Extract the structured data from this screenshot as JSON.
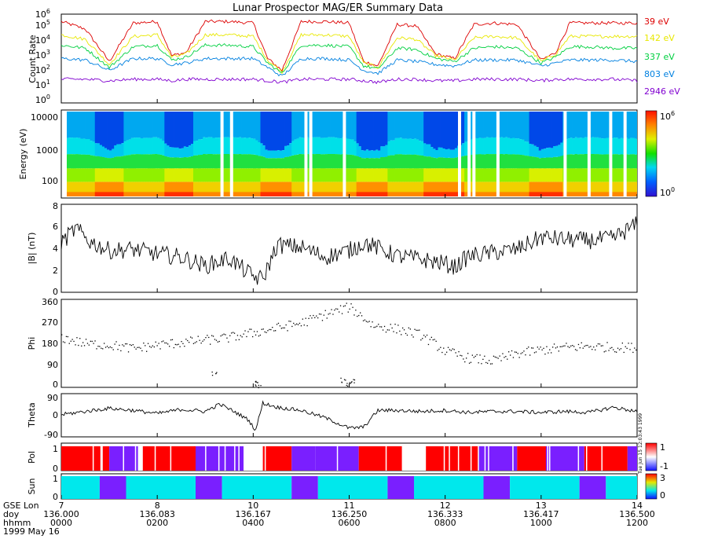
{
  "title": "Lunar Prospector MAG/ER Summary Data",
  "date_label": "1999 May 16",
  "side_stamp": "Tue Jun 15 12:03:43 1999",
  "colors": {
    "39": "#dd0000",
    "142": "#e8e800",
    "337": "#00d040",
    "803": "#0080e0",
    "2946": "#8000d0",
    "pol_red": "#ff0000",
    "pol_violet": "#7a1fff",
    "sun_cyan": "#00e8ec",
    "sun_violet": "#7a1fff"
  },
  "time_axis": {
    "rows": [
      {
        "label": "GSE Lon",
        "values": [
          "7",
          "8",
          "10",
          "11",
          "12",
          "13",
          "14"
        ]
      },
      {
        "label": "doy",
        "values": [
          "136.000",
          "136.083",
          "136.167",
          "136.250",
          "136.333",
          "136.417",
          "136.500"
        ]
      },
      {
        "label": "hhmm",
        "values": [
          "0000",
          "0200",
          "0400",
          "0600",
          "0800",
          "1000",
          "1200"
        ]
      }
    ],
    "hour_range": [
      0,
      12
    ]
  },
  "chart_data": [
    {
      "type": "line",
      "id": "count_rate",
      "ylabel": "Count Rate",
      "yscale": "log",
      "ylim_exp": [
        0,
        6
      ],
      "tick_labels": [
        {
          "base": "10",
          "exp": "0"
        },
        {
          "base": "10",
          "exp": "1"
        },
        {
          "base": "10",
          "exp": "2"
        },
        {
          "base": "10",
          "exp": "3"
        },
        {
          "base": "10",
          "exp": "4"
        },
        {
          "base": "10",
          "exp": "5"
        },
        {
          "base": "10",
          "exp": "6"
        }
      ],
      "x_hours": [
        0.0,
        0.5,
        1.0,
        1.5,
        2.0,
        2.3,
        2.6,
        3.0,
        3.5,
        4.0,
        4.3,
        4.6,
        5.0,
        5.5,
        6.0,
        6.3,
        6.6,
        7.0,
        7.4,
        7.8,
        8.2,
        8.6,
        9.0,
        9.5,
        10.0,
        10.3,
        10.6,
        11.0,
        11.5,
        12.0
      ],
      "series": [
        {
          "name": "39 eV",
          "color": "#dd0000",
          "log10_values": [
            5.5,
            5.0,
            2.8,
            5.4,
            5.5,
            3.2,
            3.4,
            5.5,
            5.5,
            5.4,
            3.0,
            2.2,
            5.5,
            5.5,
            5.4,
            2.8,
            2.5,
            5.3,
            5.2,
            3.3,
            3.0,
            5.3,
            5.4,
            5.3,
            2.9,
            3.4,
            5.4,
            5.4,
            5.4,
            5.4
          ]
        },
        {
          "name": "142 eV",
          "color": "#e8e800",
          "log10_values": [
            4.6,
            4.3,
            2.6,
            4.5,
            4.6,
            3.1,
            3.3,
            4.6,
            4.6,
            4.5,
            2.9,
            2.1,
            4.6,
            4.6,
            4.5,
            2.7,
            2.4,
            4.4,
            4.3,
            3.2,
            2.9,
            4.4,
            4.5,
            4.4,
            2.8,
            3.3,
            4.5,
            4.5,
            4.5,
            4.5
          ]
        },
        {
          "name": "337 eV",
          "color": "#00d040",
          "log10_values": [
            3.9,
            3.7,
            2.4,
            3.8,
            3.9,
            2.9,
            3.1,
            3.9,
            3.9,
            3.8,
            2.7,
            2.0,
            3.9,
            3.9,
            3.8,
            2.5,
            2.3,
            3.7,
            3.6,
            3.0,
            2.8,
            3.7,
            3.8,
            3.7,
            2.7,
            3.1,
            3.8,
            3.8,
            3.7,
            3.7
          ]
        },
        {
          "name": "803 eV",
          "color": "#0080e0",
          "log10_values": [
            3.0,
            2.9,
            2.2,
            3.0,
            3.0,
            2.6,
            2.7,
            3.0,
            3.0,
            3.0,
            2.4,
            1.8,
            3.0,
            3.0,
            2.9,
            2.2,
            2.0,
            2.9,
            2.8,
            2.6,
            2.5,
            2.9,
            2.9,
            2.9,
            2.5,
            2.7,
            2.9,
            2.9,
            2.9,
            2.8
          ]
        },
        {
          "name": "2946 eV",
          "color": "#8000d0",
          "log10_values": [
            1.6,
            1.6,
            1.5,
            1.6,
            1.6,
            1.5,
            1.6,
            1.6,
            1.6,
            1.6,
            1.5,
            1.4,
            1.6,
            1.6,
            1.6,
            1.5,
            1.4,
            1.6,
            1.6,
            1.5,
            1.5,
            1.6,
            1.6,
            1.6,
            1.5,
            1.6,
            1.6,
            1.6,
            1.6,
            1.5
          ]
        }
      ]
    },
    {
      "type": "heatmap",
      "id": "energy_spectrogram",
      "ylabel": "Energy (eV)",
      "yscale": "log",
      "ylim": [
        40,
        16000
      ],
      "tick_labels": [
        "100",
        "1000",
        "10000"
      ],
      "tick_values": [
        100,
        1000,
        10000
      ],
      "colorbar": {
        "min_label": {
          "base": "10",
          "exp": "0"
        },
        "max_label": {
          "base": "10",
          "exp": "6"
        }
      },
      "x_hours": [
        0.0,
        0.5,
        1.0,
        1.5,
        2.0,
        2.3,
        2.6,
        3.0,
        3.5,
        4.0,
        4.3,
        4.6,
        5.0,
        5.5,
        6.0,
        6.3,
        6.6,
        7.0,
        7.4,
        7.8,
        8.2,
        8.6,
        9.0,
        9.5,
        10.0,
        10.3,
        10.6,
        11.0,
        11.5,
        12.0
      ],
      "wake_fraction": [
        0.0,
        0.1,
        1.0,
        0.1,
        0.0,
        0.9,
        0.8,
        0.0,
        0.0,
        0.1,
        1.0,
        1.0,
        0.0,
        0.0,
        0.1,
        1.0,
        1.0,
        0.1,
        0.2,
        0.9,
        0.9,
        0.1,
        0.0,
        0.1,
        1.0,
        0.8,
        0.1,
        0.0,
        0.1,
        0.1
      ],
      "data_gaps_hours": [
        3.35,
        3.55,
        5.1,
        5.2,
        5.9,
        8.3,
        8.5,
        8.6,
        9.1,
        10.5,
        11.0,
        11.45,
        11.75
      ]
    },
    {
      "type": "line",
      "id": "field_magnitude",
      "ylabel": "|B| (nT)",
      "ylim": [
        0,
        8
      ],
      "tick_labels": [
        "0",
        "2",
        "4",
        "6",
        "8"
      ],
      "tick_values": [
        0,
        2,
        4,
        6,
        8
      ],
      "x_hours": [
        0.0,
        0.3,
        0.6,
        1.0,
        1.5,
        2.0,
        2.5,
        3.0,
        3.5,
        4.0,
        4.2,
        4.5,
        5.0,
        5.5,
        6.0,
        6.3,
        6.5,
        7.0,
        7.5,
        8.0,
        8.2,
        8.5,
        9.0,
        9.5,
        10.0,
        10.5,
        11.0,
        11.5,
        12.0
      ],
      "values": [
        4.5,
        5.8,
        4.6,
        3.8,
        3.9,
        3.5,
        3.2,
        2.4,
        3.1,
        1.4,
        1.2,
        4.3,
        4.1,
        3.2,
        3.8,
        4.5,
        4.2,
        3.3,
        3.0,
        2.6,
        2.3,
        3.3,
        3.6,
        3.9,
        5.0,
        4.8,
        4.7,
        4.9,
        6.2
      ]
    },
    {
      "type": "scatter",
      "id": "phi",
      "ylabel": "Phi",
      "ylim": [
        0,
        360
      ],
      "tick_labels": [
        "0",
        "90",
        "180",
        "270",
        "360"
      ],
      "tick_values": [
        0,
        90,
        180,
        270,
        360
      ],
      "x_hours": [
        0.0,
        0.5,
        1.0,
        1.5,
        2.0,
        2.5,
        3.0,
        3.5,
        4.0,
        4.5,
        5.0,
        5.5,
        6.0,
        6.5,
        7.0,
        7.5,
        8.0,
        8.5,
        9.0,
        9.5,
        10.0,
        10.5,
        11.0,
        11.5,
        12.0
      ],
      "values": [
        205,
        180,
        175,
        160,
        175,
        185,
        195,
        205,
        225,
        245,
        265,
        300,
        330,
        255,
        240,
        215,
        150,
        120,
        110,
        140,
        155,
        165,
        170,
        165,
        165
      ],
      "outlier_x": [
        3.2,
        4.05,
        4.1,
        5.85,
        5.95,
        6.05
      ],
      "outlier_values": [
        60,
        30,
        10,
        30,
        15,
        25
      ]
    },
    {
      "type": "line",
      "id": "theta",
      "ylabel": "Theta",
      "ylim": [
        -90,
        90
      ],
      "tick_labels": [
        "-90",
        "0",
        "90"
      ],
      "tick_values": [
        -90,
        0,
        90
      ],
      "x_hours": [
        0.0,
        0.5,
        1.0,
        1.5,
        2.0,
        2.5,
        3.0,
        3.3,
        3.6,
        3.9,
        4.05,
        4.2,
        4.5,
        5.0,
        5.5,
        6.0,
        6.3,
        6.6,
        7.0,
        7.5,
        8.0,
        8.5,
        9.0,
        9.5,
        10.0,
        10.5,
        11.0,
        11.5,
        12.0
      ],
      "values": [
        5,
        20,
        35,
        25,
        10,
        30,
        20,
        55,
        20,
        -20,
        -70,
        60,
        40,
        25,
        -10,
        -60,
        -55,
        25,
        25,
        20,
        25,
        15,
        20,
        20,
        15,
        20,
        15,
        40,
        20
      ]
    },
    {
      "type": "table",
      "id": "polarity",
      "ylabel": "Pol",
      "tick_labels": [
        "0",
        "1"
      ],
      "colorbar_labels": [
        "-1",
        "1"
      ],
      "segments": [
        {
          "start_hour": 0.0,
          "end_hour": 1.0,
          "value": 1
        },
        {
          "start_hour": 1.0,
          "end_hour": 1.6,
          "value": -1
        },
        {
          "start_hour": 1.6,
          "end_hour": 1.7,
          "value": 0
        },
        {
          "start_hour": 1.7,
          "end_hour": 2.8,
          "value": 1
        },
        {
          "start_hour": 2.8,
          "end_hour": 3.8,
          "value": -1
        },
        {
          "start_hour": 3.8,
          "end_hour": 4.2,
          "value": 0
        },
        {
          "start_hour": 4.2,
          "end_hour": 4.8,
          "value": 1
        },
        {
          "start_hour": 4.8,
          "end_hour": 5.3,
          "value": -1
        },
        {
          "start_hour": 5.3,
          "end_hour": 6.2,
          "value": -1
        },
        {
          "start_hour": 6.2,
          "end_hour": 7.1,
          "value": 1
        },
        {
          "start_hour": 7.1,
          "end_hour": 7.6,
          "value": 0
        },
        {
          "start_hour": 7.6,
          "end_hour": 8.7,
          "value": 1
        },
        {
          "start_hour": 8.7,
          "end_hour": 9.5,
          "value": -1
        },
        {
          "start_hour": 9.5,
          "end_hour": 10.1,
          "value": 1
        },
        {
          "start_hour": 10.1,
          "end_hour": 10.9,
          "value": -1
        },
        {
          "start_hour": 10.9,
          "end_hour": 11.8,
          "value": 1
        },
        {
          "start_hour": 11.8,
          "end_hour": 12.0,
          "value": -1
        }
      ]
    },
    {
      "type": "table",
      "id": "sun",
      "ylabel": "Sun",
      "tick_labels": [
        "0",
        "1"
      ],
      "colorbar_labels": [
        "0",
        "3"
      ],
      "segments": [
        {
          "start_hour": 0.0,
          "end_hour": 0.8,
          "value": "sunlit"
        },
        {
          "start_hour": 0.8,
          "end_hour": 1.35,
          "value": "shadow"
        },
        {
          "start_hour": 1.35,
          "end_hour": 2.8,
          "value": "sunlit"
        },
        {
          "start_hour": 2.8,
          "end_hour": 3.35,
          "value": "shadow"
        },
        {
          "start_hour": 3.35,
          "end_hour": 4.8,
          "value": "sunlit"
        },
        {
          "start_hour": 4.8,
          "end_hour": 5.35,
          "value": "shadow"
        },
        {
          "start_hour": 5.35,
          "end_hour": 6.8,
          "value": "sunlit"
        },
        {
          "start_hour": 6.8,
          "end_hour": 7.35,
          "value": "shadow"
        },
        {
          "start_hour": 7.35,
          "end_hour": 8.8,
          "value": "sunlit"
        },
        {
          "start_hour": 8.8,
          "end_hour": 9.35,
          "value": "shadow"
        },
        {
          "start_hour": 9.35,
          "end_hour": 10.8,
          "value": "sunlit"
        },
        {
          "start_hour": 10.8,
          "end_hour": 11.35,
          "value": "shadow"
        },
        {
          "start_hour": 11.35,
          "end_hour": 12.0,
          "value": "sunlit"
        }
      ]
    }
  ]
}
